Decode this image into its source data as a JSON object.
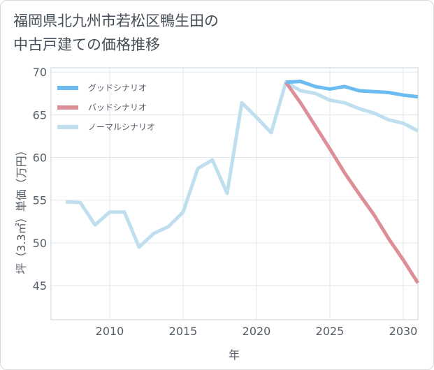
{
  "chart_data": {
    "type": "line",
    "title_lines": [
      "福岡県北九州市若松区鴨生田の",
      "中古戸建ての価格推移"
    ],
    "xlabel": "年",
    "ylabel": "坪（3.3㎡）単価（万円）",
    "xlim": [
      2006,
      2031
    ],
    "ylim": [
      41,
      70.5
    ],
    "x_ticks": [
      2010,
      2015,
      2020,
      2025,
      2030
    ],
    "y_ticks": [
      45,
      50,
      55,
      60,
      65,
      70
    ],
    "grid": true,
    "legend_position": "top-left",
    "series": [
      {
        "name": "グッドシナリオ",
        "color": "#6bbcf0",
        "x": [
          2022,
          2023,
          2024,
          2025,
          2026,
          2027,
          2028,
          2029,
          2030,
          2031
        ],
        "y": [
          68.8,
          68.9,
          68.3,
          68.0,
          68.3,
          67.8,
          67.7,
          67.6,
          67.3,
          67.1
        ]
      },
      {
        "name": "バッドシナリオ",
        "color": "#dd8f98",
        "x": [
          2022,
          2023,
          2024,
          2025,
          2026,
          2027,
          2028,
          2029,
          2030,
          2031
        ],
        "y": [
          68.8,
          66.4,
          63.7,
          61.0,
          58.2,
          55.7,
          53.3,
          50.5,
          48.0,
          45.3
        ]
      },
      {
        "name": "ノーマルシナリオ",
        "color": "#bfdfee",
        "x": [
          2007,
          2008,
          2009,
          2010,
          2011,
          2012,
          2013,
          2014,
          2015,
          2016,
          2017,
          2018,
          2019,
          2020,
          2021,
          2022,
          2023,
          2024,
          2025,
          2026,
          2027,
          2028,
          2029,
          2030,
          2031
        ],
        "y": [
          54.8,
          54.7,
          52.1,
          53.6,
          53.6,
          49.5,
          51.1,
          51.9,
          53.6,
          58.7,
          59.7,
          55.8,
          66.4,
          64.7,
          62.9,
          68.8,
          67.8,
          67.5,
          66.7,
          66.4,
          65.7,
          65.2,
          64.4,
          64.0,
          63.1
        ]
      }
    ]
  }
}
